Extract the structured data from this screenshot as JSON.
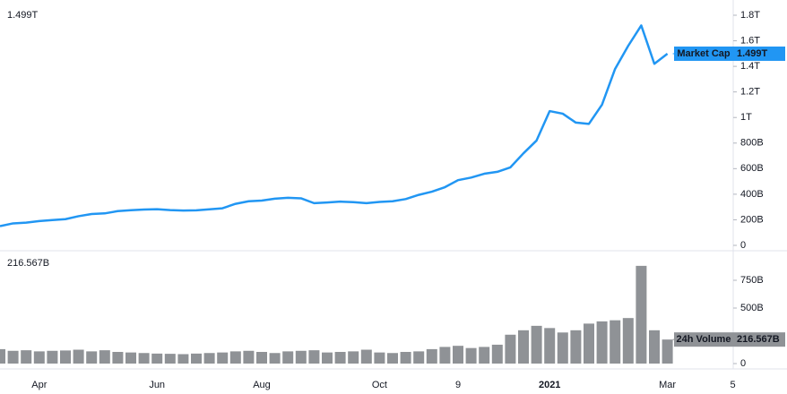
{
  "chart_data": {
    "type": "line",
    "categories": [
      null,
      null,
      null,
      "Apr",
      null,
      null,
      null,
      null,
      null,
      null,
      null,
      null,
      "Jun",
      null,
      null,
      null,
      null,
      null,
      null,
      null,
      "Aug",
      null,
      null,
      null,
      null,
      null,
      null,
      null,
      null,
      "Oct",
      null,
      null,
      null,
      null,
      null,
      "9",
      null,
      null,
      null,
      null,
      null,
      null,
      "2021",
      null,
      null,
      null,
      null,
      null,
      null,
      null,
      null,
      "Mar",
      null,
      null,
      null,
      null,
      "5"
    ],
    "series": [
      {
        "name": "Market Cap",
        "type": "line",
        "color": "#2196f3",
        "values": [
          150,
          172,
          178,
          190,
          198,
          205,
          228,
          245,
          250,
          268,
          275,
          280,
          283,
          276,
          272,
          274,
          282,
          290,
          325,
          345,
          350,
          365,
          372,
          368,
          330,
          335,
          342,
          338,
          330,
          340,
          345,
          362,
          395,
          420,
          455,
          510,
          530,
          560,
          575,
          610,
          720,
          820,
          1050,
          1030,
          960,
          950,
          1100,
          1380,
          1560,
          1720,
          1420,
          1499,
          null,
          null,
          null,
          null,
          null
        ],
        "value_labels": [
          null,
          null,
          null,
          null,
          null,
          null,
          null,
          null,
          null,
          null,
          null,
          null,
          null,
          null,
          null,
          null,
          null,
          null,
          null,
          null,
          null,
          null,
          null,
          null,
          null,
          null,
          null,
          null,
          null,
          null,
          null,
          null,
          null,
          null,
          null,
          null,
          null,
          null,
          null,
          null,
          null,
          null,
          null,
          null,
          null,
          null,
          null,
          null,
          null,
          null,
          null,
          "1.499T",
          null,
          null,
          null,
          null,
          null
        ]
      },
      {
        "name": "24h Volume",
        "type": "bar",
        "axis": "y2",
        "color": "#8f9296",
        "values": [
          130,
          115,
          120,
          110,
          115,
          118,
          125,
          110,
          120,
          105,
          100,
          95,
          90,
          88,
          85,
          90,
          95,
          100,
          110,
          115,
          105,
          95,
          110,
          115,
          120,
          100,
          105,
          110,
          125,
          100,
          95,
          105,
          110,
          130,
          150,
          160,
          140,
          150,
          170,
          260,
          300,
          340,
          320,
          280,
          300,
          360,
          380,
          390,
          410,
          880,
          300,
          216.567,
          null,
          null,
          null,
          null,
          null
        ],
        "value_labels": [
          null,
          null,
          null,
          null,
          null,
          null,
          null,
          null,
          null,
          null,
          null,
          null,
          null,
          null,
          null,
          null,
          null,
          null,
          null,
          null,
          null,
          null,
          null,
          null,
          null,
          null,
          null,
          null,
          null,
          null,
          null,
          null,
          null,
          null,
          null,
          null,
          null,
          null,
          null,
          null,
          null,
          null,
          null,
          null,
          null,
          null,
          null,
          null,
          null,
          null,
          null,
          "216.567B",
          null,
          null,
          null,
          null,
          null
        ]
      }
    ],
    "ylim": [
      -28,
      1919
    ],
    "yticks": [
      0,
      {
        "value": 200,
        "label": "200B"
      },
      {
        "value": 400,
        "label": "400B"
      },
      {
        "value": 600,
        "label": "600B"
      },
      {
        "value": 800,
        "label": "800B"
      },
      {
        "value": 1000,
        "label": "1T"
      },
      {
        "value": 1200,
        "label": "1.2T"
      },
      {
        "value": 1400,
        "label": "1.4T"
      },
      {
        "value": 1600,
        "label": "1.6T"
      },
      {
        "value": 1800,
        "label": "1.8T"
      }
    ],
    "y2lim": [
      -32,
      1000
    ],
    "y2ticks": [
      0,
      {
        "value": 500,
        "label": "500B"
      },
      {
        "value": 750,
        "label": "750B"
      }
    ]
  }
}
